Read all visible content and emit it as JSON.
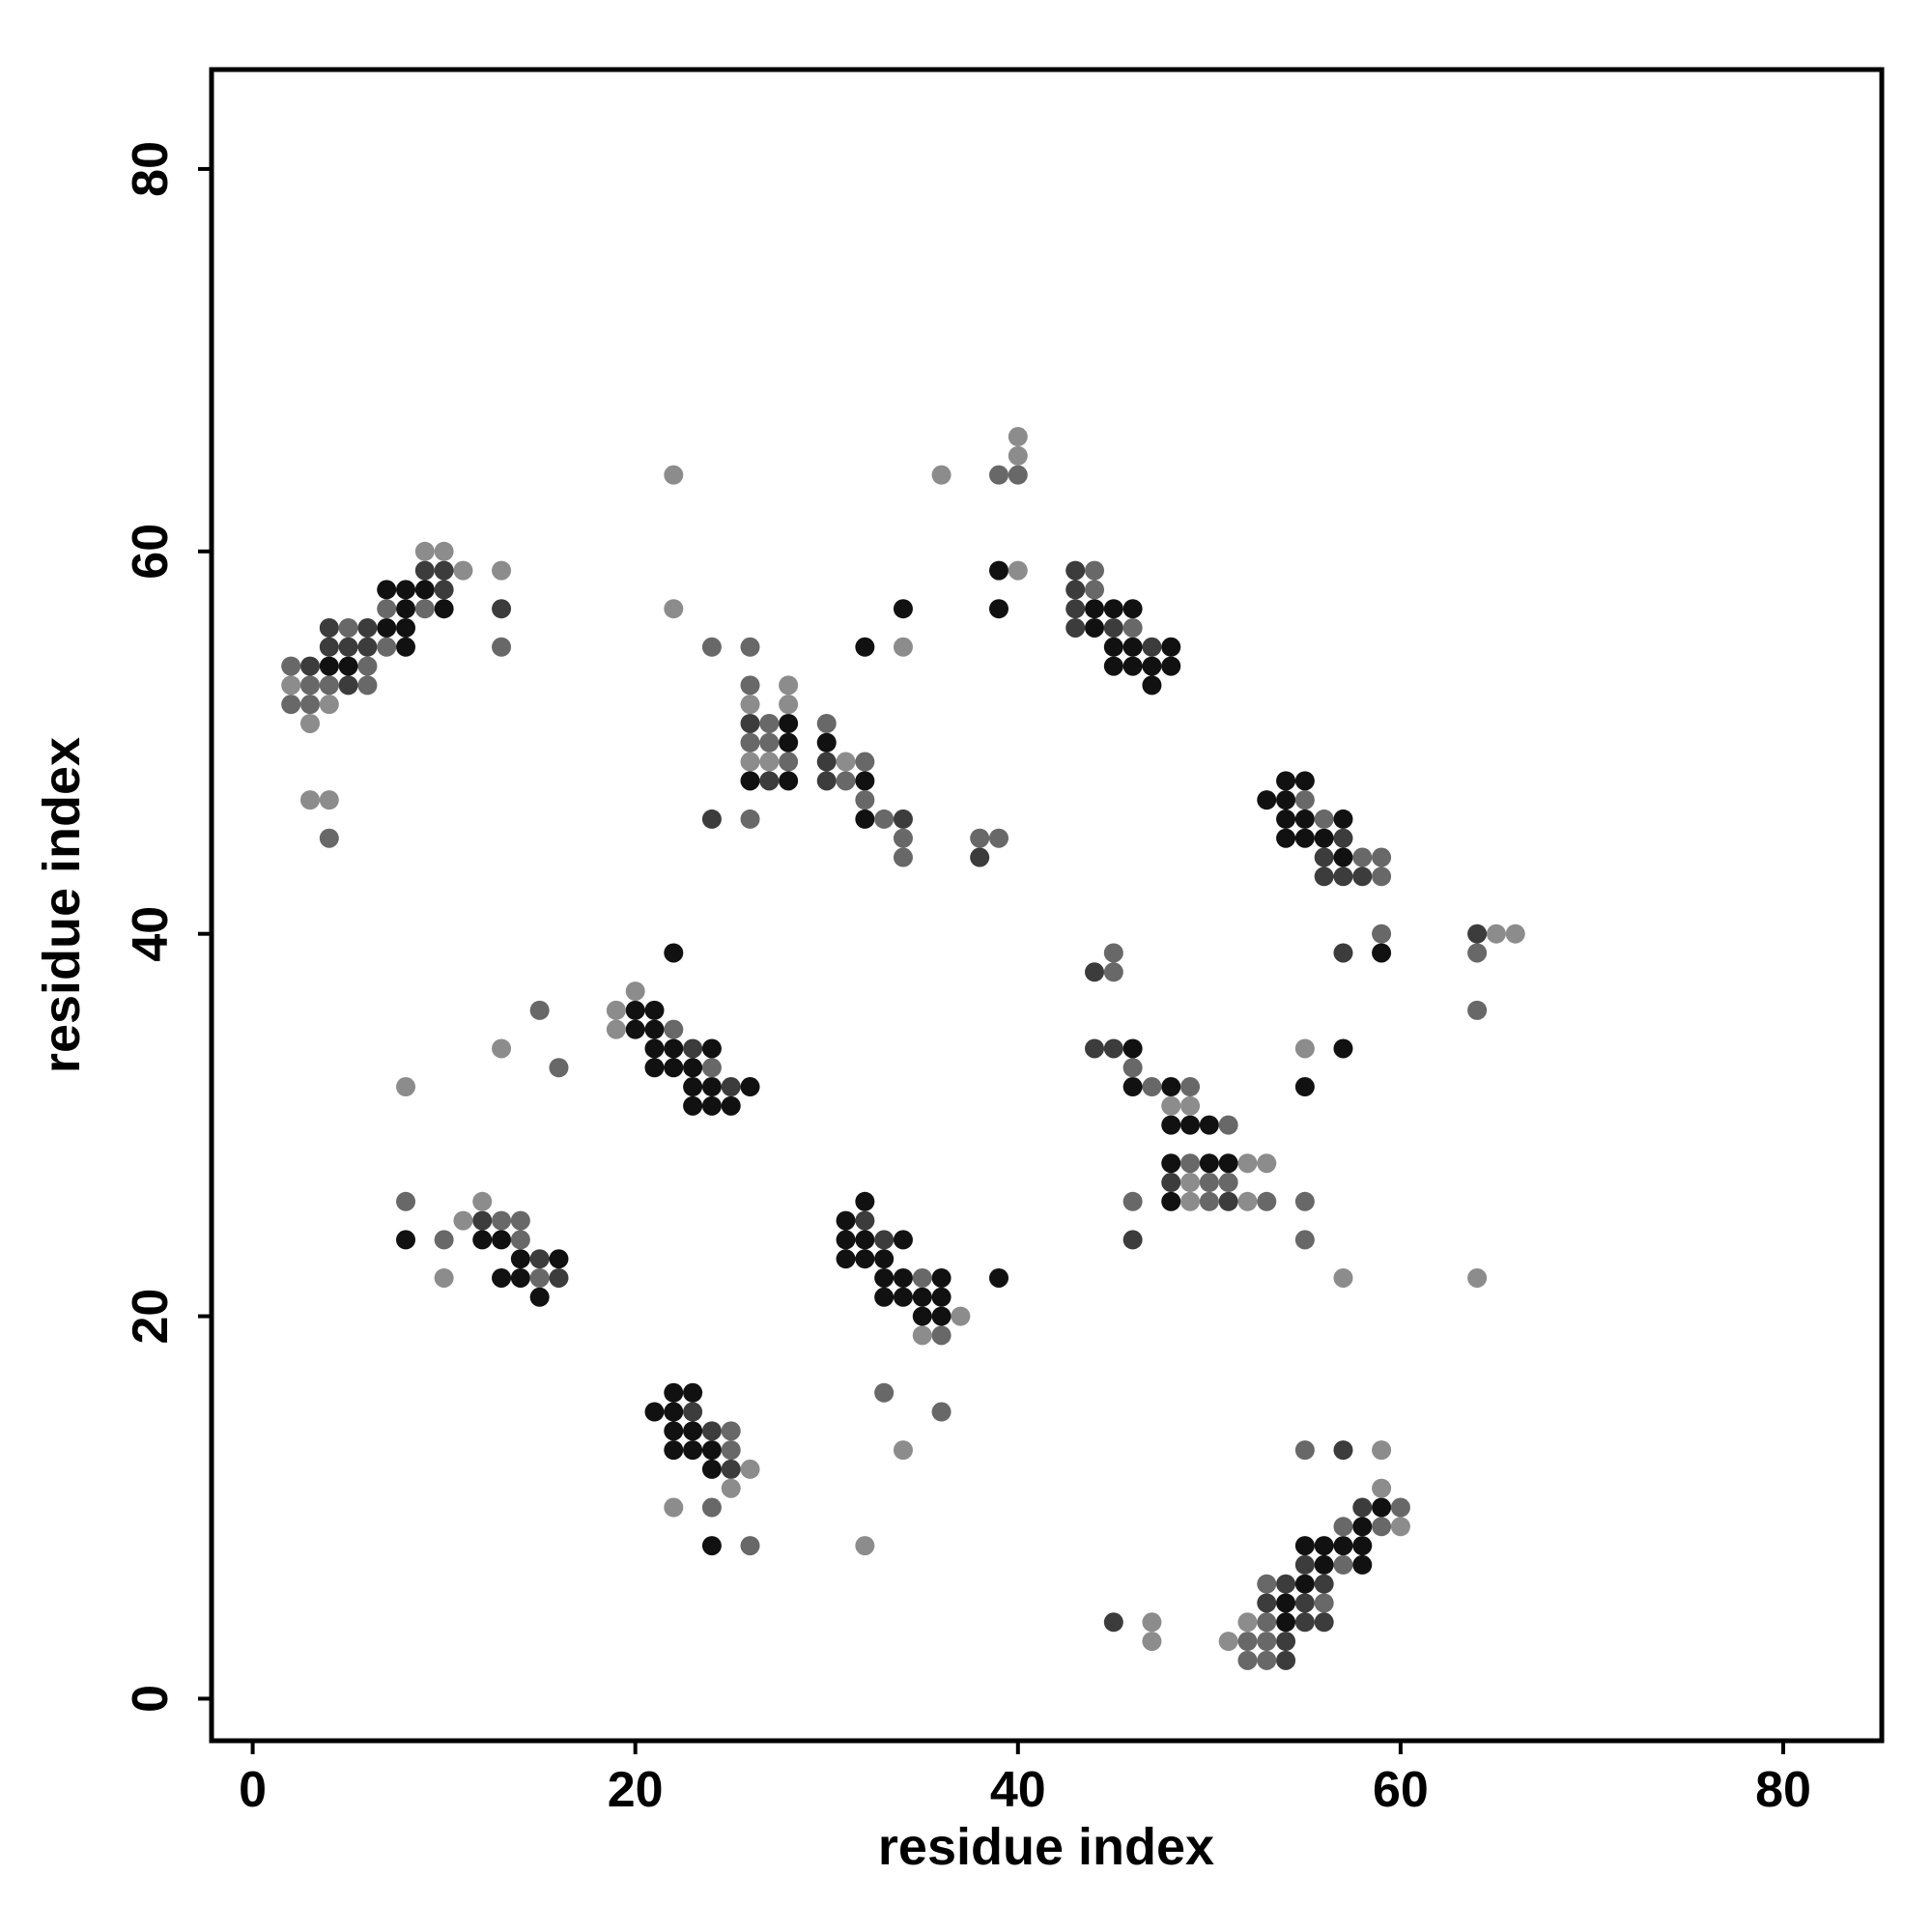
{
  "chart_data": {
    "type": "scatter",
    "x_label": "residue index",
    "y_label": "residue index",
    "xlim": [
      -2.15,
      85.15
    ],
    "ylim": [
      -2.2,
      85.2
    ],
    "xticks": [
      0,
      20,
      40,
      60,
      80
    ],
    "yticks": [
      0,
      20,
      40,
      60,
      80
    ],
    "series": [
      {
        "color": "#111111",
        "x": [
          7,
          8,
          9,
          8,
          10,
          7,
          8,
          8,
          4,
          5,
          22,
          20,
          21,
          20,
          21,
          21,
          22,
          24,
          21,
          22,
          23,
          23,
          24,
          26,
          23,
          24,
          25,
          8,
          12,
          13,
          14,
          16,
          13,
          14,
          15,
          32,
          31,
          31,
          32,
          34,
          31,
          32,
          33,
          33,
          34,
          36,
          39,
          33,
          34,
          35,
          36,
          35,
          36,
          22,
          23,
          21,
          22,
          22,
          23,
          22,
          23,
          24,
          24,
          24,
          32,
          34,
          39,
          39,
          28,
          28,
          30,
          26,
          28,
          32,
          32,
          44,
          45,
          46,
          44,
          45,
          46,
          48,
          45,
          46,
          47,
          48,
          47,
          54,
          55,
          53,
          54,
          54,
          55,
          57,
          54,
          55,
          56,
          57,
          59,
          46,
          57,
          46,
          48,
          55,
          48,
          49,
          50,
          48,
          50,
          51,
          48,
          59,
          58,
          55,
          56,
          57,
          58,
          56,
          58,
          55,
          54,
          54
        ],
        "y": [
          58,
          58,
          58,
          57,
          57,
          56,
          56,
          55,
          54,
          54,
          39,
          36,
          36,
          35,
          35,
          34,
          34,
          34,
          33,
          33,
          33,
          32,
          32,
          32,
          31,
          31,
          31,
          24,
          24,
          24,
          23,
          23,
          22,
          22,
          21,
          26,
          25,
          24,
          24,
          24,
          23,
          23,
          23,
          22,
          22,
          22,
          22,
          21,
          21,
          21,
          21,
          20,
          20,
          16,
          16,
          15,
          15,
          14,
          14,
          13,
          13,
          13,
          12,
          8,
          55,
          57,
          59,
          57,
          51,
          50,
          50,
          48,
          48,
          48,
          46,
          57,
          57,
          57,
          56,
          55,
          55,
          55,
          54,
          54,
          54,
          54,
          53,
          48,
          48,
          47,
          47,
          46,
          46,
          46,
          45,
          45,
          45,
          44,
          39,
          34,
          34,
          32,
          32,
          32,
          30,
          30,
          30,
          28,
          28,
          28,
          26,
          10,
          9,
          8,
          8,
          8,
          8,
          7,
          7,
          6,
          5,
          4
        ]
      },
      {
        "color": "#3c3c3c",
        "x": [
          9,
          10,
          10,
          13,
          4,
          6,
          4,
          5,
          6,
          3,
          5,
          23,
          25,
          12,
          15,
          16,
          32,
          33,
          23,
          24,
          25,
          26,
          30,
          27,
          30,
          24,
          34,
          38,
          43,
          43,
          43,
          43,
          45,
          47,
          57,
          56,
          56,
          57,
          58,
          64,
          57,
          44,
          44,
          45,
          48,
          51,
          46,
          57,
          58,
          55,
          54,
          56,
          53,
          55,
          45,
          55,
          56,
          54,
          54
        ],
        "y": [
          59,
          59,
          58,
          57,
          56,
          56,
          55,
          55,
          55,
          54,
          53,
          34,
          32,
          25,
          23,
          22,
          25,
          24,
          15,
          14,
          12,
          51,
          49,
          48,
          48,
          46,
          46,
          44,
          59,
          58,
          57,
          56,
          56,
          55,
          45,
          44,
          43,
          43,
          43,
          40,
          39,
          38,
          34,
          34,
          27,
          26,
          24,
          13,
          10,
          7,
          6,
          6,
          5,
          5,
          4,
          4,
          4,
          3,
          2
        ]
      },
      {
        "color": "#686868",
        "x": [
          7,
          9,
          5,
          7,
          13,
          2,
          6,
          3,
          4,
          6,
          2,
          3,
          4,
          15,
          22,
          24,
          16,
          8,
          13,
          14,
          10,
          14,
          15,
          35,
          36,
          33,
          36,
          25,
          25,
          24,
          26,
          24,
          26,
          26,
          27,
          30,
          26,
          27,
          28,
          32,
          31,
          32,
          26,
          33,
          34,
          38,
          39,
          34,
          39,
          40,
          44,
          44,
          46,
          55,
          56,
          58,
          59,
          59,
          59,
          64,
          64,
          45,
          45,
          46,
          47,
          49,
          51,
          49,
          50,
          51,
          46,
          50,
          53,
          55,
          55,
          55,
          60,
          57,
          59,
          57,
          53,
          56,
          53,
          52,
          53,
          52,
          53
        ],
        "y": [
          57,
          57,
          56,
          55,
          55,
          54,
          54,
          53,
          53,
          53,
          52,
          52,
          45,
          36,
          35,
          33,
          33,
          26,
          25,
          25,
          24,
          24,
          22,
          22,
          19,
          16,
          15,
          14,
          13,
          10,
          8,
          55,
          55,
          53,
          51,
          51,
          50,
          50,
          49,
          49,
          48,
          47,
          46,
          46,
          45,
          45,
          45,
          44,
          64,
          64,
          59,
          58,
          56,
          47,
          46,
          44,
          44,
          43,
          40,
          39,
          36,
          39,
          38,
          33,
          32,
          32,
          30,
          28,
          27,
          27,
          26,
          26,
          26,
          26,
          24,
          13,
          10,
          9,
          9,
          7,
          6,
          5,
          4,
          3,
          3,
          2,
          2
        ]
      },
      {
        "color": "#8c8c8c",
        "x": [
          9,
          10,
          11,
          13,
          2,
          4,
          3,
          3,
          4,
          20,
          19,
          19,
          13,
          8,
          12,
          11,
          10,
          37,
          35,
          34,
          26,
          25,
          22,
          32,
          22,
          36,
          40,
          40,
          40,
          22,
          34,
          28,
          26,
          28,
          26,
          27,
          31,
          65,
          66,
          55,
          48,
          49,
          52,
          53,
          49,
          49,
          52,
          57,
          64,
          59,
          59,
          60,
          47,
          52,
          47,
          51
        ],
        "y": [
          60,
          60,
          59,
          59,
          53,
          52,
          51,
          47,
          47,
          37,
          36,
          35,
          34,
          32,
          26,
          25,
          22,
          20,
          19,
          13,
          12,
          11,
          10,
          8,
          64,
          64,
          66,
          65,
          59,
          57,
          55,
          53,
          52,
          52,
          49,
          49,
          49,
          40,
          40,
          34,
          31,
          31,
          28,
          28,
          27,
          26,
          26,
          22,
          22,
          13,
          11,
          9,
          4,
          4,
          3,
          3
        ]
      }
    ]
  }
}
